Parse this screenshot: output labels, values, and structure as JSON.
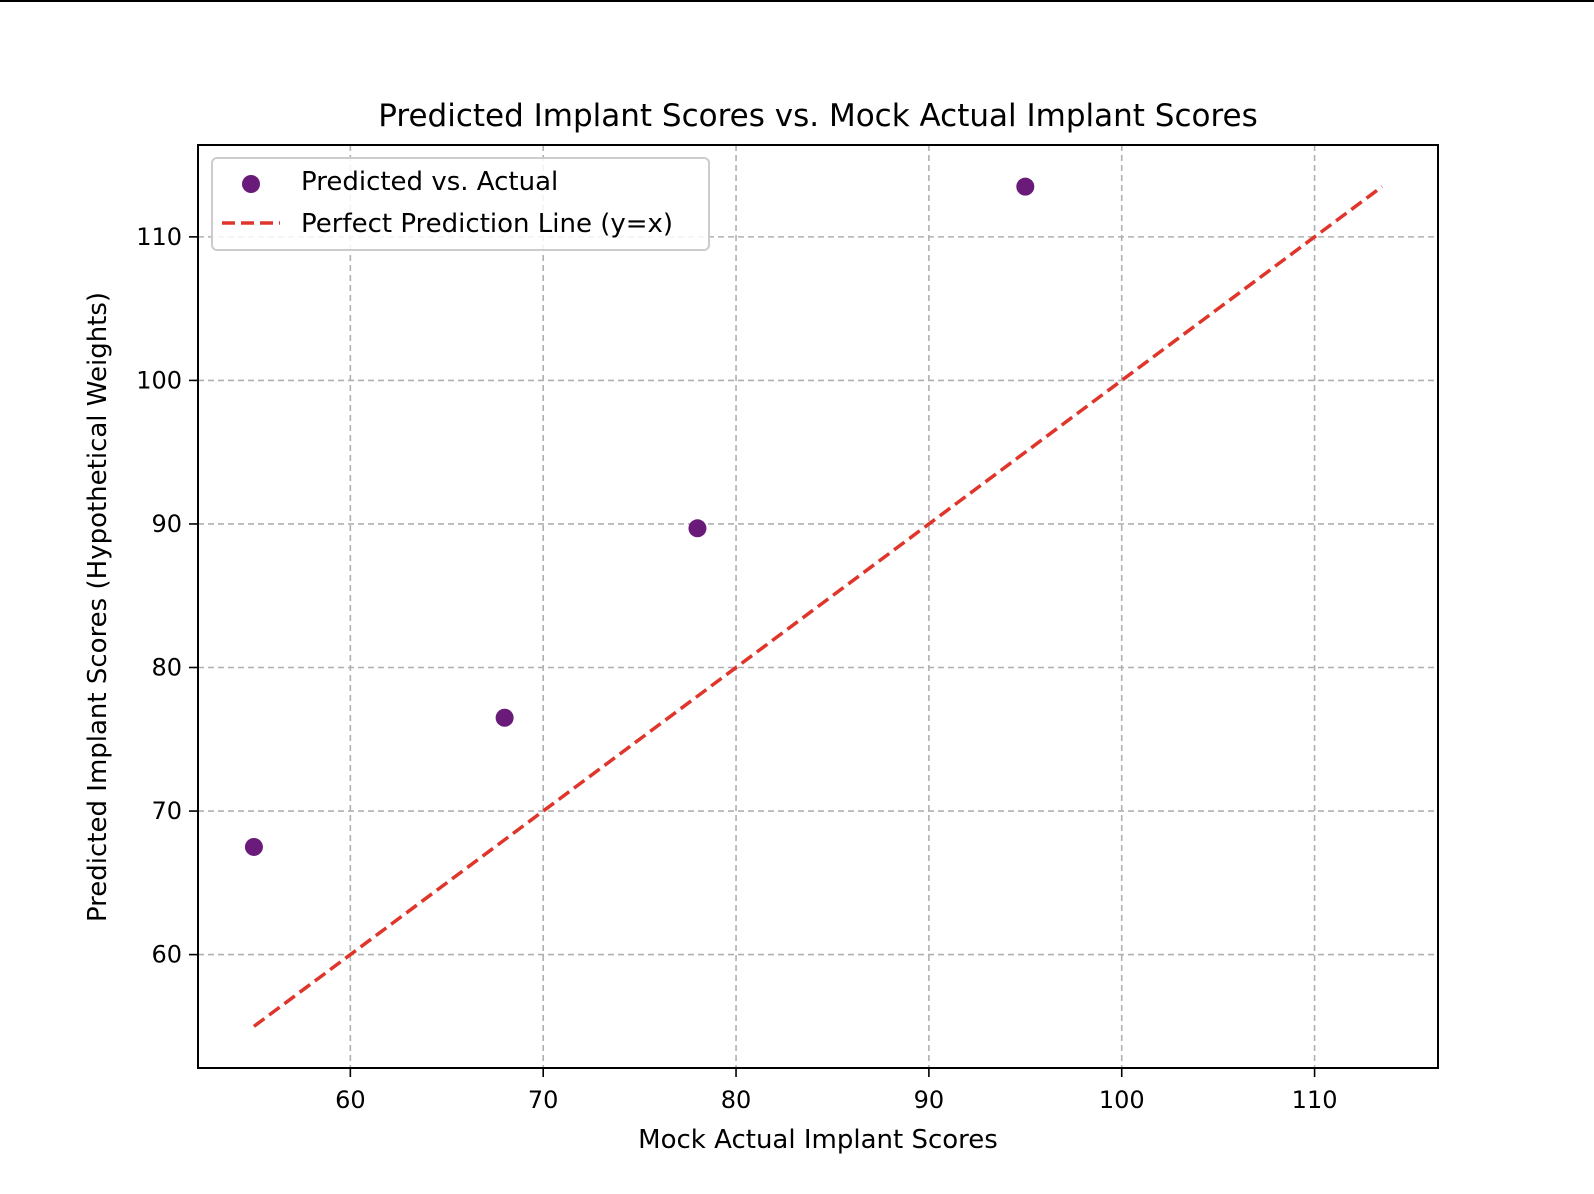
{
  "chart_data": {
    "type": "scatter",
    "title": "Predicted Implant Scores vs. Mock Actual Implant Scores",
    "xlabel": "Mock Actual Implant Scores",
    "ylabel": "Predicted Implant Scores (Hypothetical Weights)",
    "xlim": [
      52.1,
      116.4
    ],
    "ylim": [
      52.1,
      116.4
    ],
    "x_ticks": [
      60,
      70,
      80,
      90,
      100,
      110
    ],
    "y_ticks": [
      60,
      70,
      80,
      90,
      100,
      110
    ],
    "grid": true,
    "legend_position": "top-left",
    "series": [
      {
        "name": "Predicted vs. Actual",
        "kind": "scatter",
        "color": "#6a1b7a",
        "x": [
          55,
          68,
          78,
          95
        ],
        "y": [
          67.5,
          76.5,
          89.7,
          113.5
        ]
      },
      {
        "name": "Perfect Prediction Line (y=x)",
        "kind": "line",
        "style": "dashed",
        "color": "#e0352b",
        "x": [
          55,
          113.5
        ],
        "y": [
          55,
          113.5
        ]
      }
    ]
  }
}
